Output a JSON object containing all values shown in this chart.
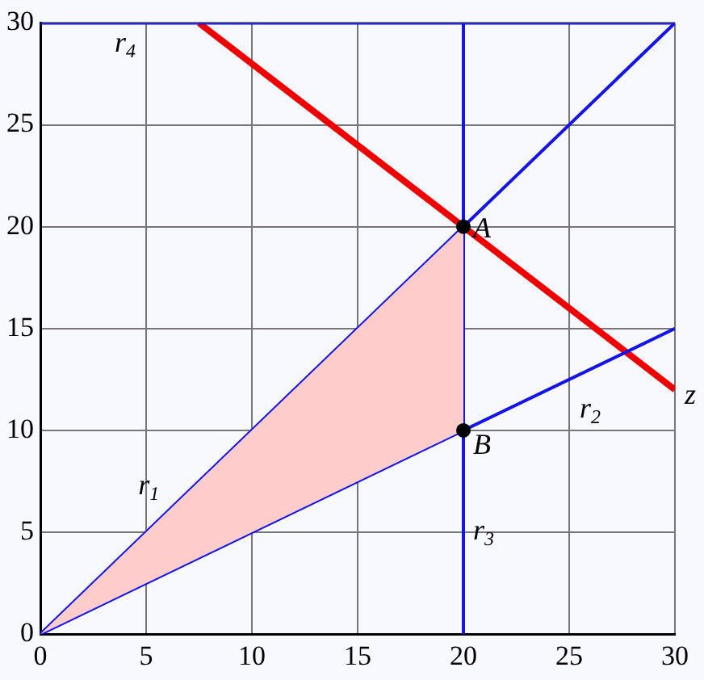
{
  "chart_data": {
    "type": "line",
    "xlim": [
      0,
      30
    ],
    "ylim": [
      0,
      30
    ],
    "xticks": [
      0,
      5,
      10,
      15,
      20,
      25,
      30
    ],
    "yticks": [
      0,
      5,
      10,
      15,
      20,
      25,
      30
    ],
    "grid": true,
    "legend": false,
    "series": [
      {
        "type": "area",
        "color": "#ffcccc",
        "x": [
          0,
          20,
          20
        ],
        "values": [
          0,
          20,
          10
        ]
      },
      {
        "name": "r$_{1}$",
        "color": "#1414e6",
        "x": [
          0,
          30
        ],
        "values": [
          0,
          30
        ]
      },
      {
        "name": "r$_{2}$",
        "color": "#1414e6",
        "x": [
          0,
          30
        ],
        "values": [
          0,
          15
        ]
      },
      {
        "name": "r$_{3}$",
        "color": "#1414e6",
        "x": [
          20,
          20
        ],
        "values": [
          0,
          30
        ]
      },
      {
        "name": "r$_{4}$",
        "color": "#1414e6",
        "x": [
          0,
          30
        ],
        "values": [
          30,
          30
        ]
      },
      {
        "name": "z",
        "color": "#ee0000",
        "x": [
          7.5,
          30
        ],
        "values": [
          30,
          12
        ]
      },
      {
        "type": "scatter",
        "color": "#000000",
        "marker": "circle",
        "x": [
          20,
          20
        ],
        "values": [
          20,
          10
        ]
      }
    ],
    "annotations": [
      {
        "text": "A",
        "x": 20,
        "y": 20
      },
      {
        "text": "B",
        "x": 20,
        "y": 10
      }
    ]
  }
}
